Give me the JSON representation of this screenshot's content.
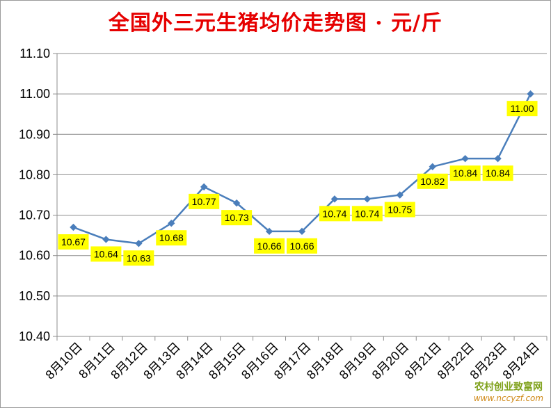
{
  "chart_data": {
    "type": "line",
    "title": "全国外三元生猪均价走势图 · 元/斤",
    "xlabel": "",
    "ylabel": "",
    "categories": [
      "8月10日",
      "8月11日",
      "8月12日",
      "8月13日",
      "8月14日",
      "8月15日",
      "8月16日",
      "8月17日",
      "8月18日",
      "8月19日",
      "8月20日",
      "8月21日",
      "8月22日",
      "8月23日",
      "8月24日"
    ],
    "values": [
      10.67,
      10.64,
      10.63,
      10.68,
      10.77,
      10.73,
      10.66,
      10.66,
      10.74,
      10.74,
      10.75,
      10.82,
      10.84,
      10.84,
      11.0
    ],
    "data_labels": [
      "10.67",
      "10.64",
      "10.63",
      "10.68",
      "10.77",
      "10.73",
      "10.66",
      "10.66",
      "10.74",
      "10.74",
      "10.75",
      "10.82",
      "10.84",
      "10.84",
      "11.00"
    ],
    "y_ticks": [
      "10.40",
      "10.50",
      "10.60",
      "10.70",
      "10.80",
      "10.90",
      "11.00",
      "11.10"
    ],
    "ylim": [
      10.4,
      11.1
    ],
    "grid": true,
    "legend": "none",
    "line_color": "#4a7ebb",
    "label_bg_color": "#ffff00",
    "title_color": "#e60000"
  },
  "watermark": {
    "text": "农村创业致富网",
    "url": "www.nccyzf.com"
  }
}
